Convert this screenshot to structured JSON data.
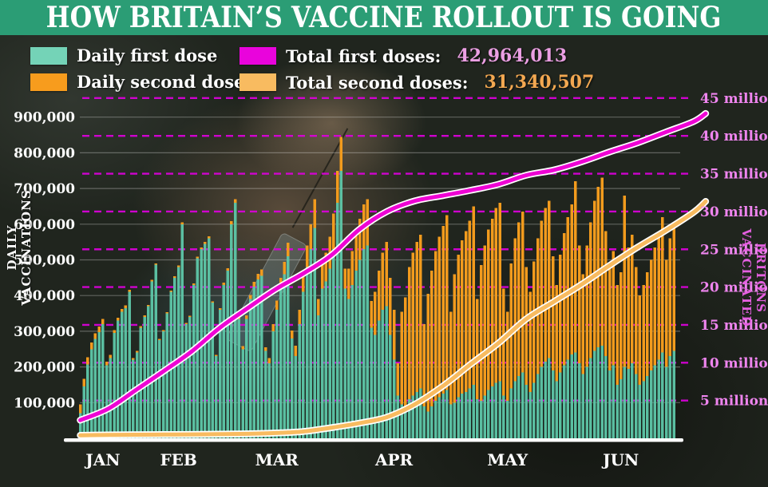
{
  "header": {
    "title": "HOW BRITAIN’S VACCINE ROLLOUT IS GOING"
  },
  "legend": {
    "daily_first": {
      "label": "Daily first dose"
    },
    "daily_second": {
      "label": "Daily second dose"
    },
    "total_first": {
      "label": "Total first doses:",
      "value": "42,964,013"
    },
    "total_second": {
      "label": "Total second doses:",
      "value": "31,340,507"
    }
  },
  "colors": {
    "header_green": "#2b9d75",
    "bar_first": "#5ec7a9",
    "bar_second": "#f29b1d",
    "swatch_first": "#74d3b7",
    "swatch_second": "#f79c1d",
    "swatch_total_first": "#e904dc",
    "swatch_total_second": "#f8bb60",
    "line_first": "#ee04d4",
    "line_second": "#f8bb60",
    "dashed_grid": "#dd00dd",
    "solid_grid": "rgba(245,245,245,0.30)",
    "right_axis_text": "#ef85ef",
    "left_axis_text": "#ffffff",
    "total_first_value": "#eb9fe3",
    "total_second_value": "#f3a851",
    "month_text": "#ffffff",
    "axis_line": "#ffffff"
  },
  "chart_data": {
    "type": "bar",
    "subtype": "stacked daily bars + cumulative lines (dual axis)",
    "title": "HOW BRITAIN’S VACCINE ROLLOUT IS GOING",
    "x_axis": {
      "unit": "day",
      "months": [
        {
          "label": "JAN",
          "day": 6
        },
        {
          "label": "FEB",
          "day": 26
        },
        {
          "label": "MAR",
          "day": 52
        },
        {
          "label": "APR",
          "day": 83
        },
        {
          "label": "MAY",
          "day": 113
        },
        {
          "label": "JUN",
          "day": 143
        }
      ]
    },
    "left_axis": {
      "title": "DAILY VACCINATIONS",
      "ticks": [
        "100,000",
        "200,000",
        "300,000",
        "400,000",
        "500,000",
        "600,000",
        "700,000",
        "800,000",
        "900,000"
      ],
      "tick_step": 100000,
      "range": [
        0,
        950000
      ],
      "grid": "solid"
    },
    "right_axis": {
      "title": "BRITONS VACCINATED",
      "ticks": [
        "5 million",
        "10 million",
        "15 million",
        "20 million",
        "25 million",
        "30 million",
        "35 million",
        "40 million",
        "45 million"
      ],
      "tick_step_millions": 5,
      "range_millions": [
        0,
        47
      ],
      "grid": "dashed"
    },
    "totals": {
      "first_doses": "42,964,013",
      "second_doses": "31,340,507"
    },
    "series": {
      "daily_first_dose_thousands": [
        70,
        145,
        207,
        250,
        278,
        298,
        320,
        205,
        225,
        295,
        330,
        355,
        365,
        410,
        220,
        240,
        310,
        340,
        370,
        440,
        487,
        275,
        300,
        350,
        410,
        450,
        480,
        600,
        320,
        340,
        430,
        505,
        530,
        545,
        560,
        380,
        230,
        360,
        430,
        470,
        600,
        660,
        335,
        250,
        335,
        390,
        425,
        445,
        455,
        245,
        210,
        300,
        360,
        420,
        460,
        510,
        280,
        230,
        320,
        410,
        480,
        530,
        590,
        345,
        420,
        440,
        475,
        530,
        660,
        750,
        420,
        390,
        430,
        470,
        500,
        530,
        540,
        310,
        290,
        330,
        360,
        370,
        290,
        220,
        120,
        95,
        85,
        110,
        120,
        130,
        140,
        90,
        75,
        90,
        105,
        115,
        125,
        135,
        95,
        100,
        115,
        125,
        130,
        140,
        150,
        110,
        105,
        120,
        135,
        145,
        155,
        160,
        120,
        105,
        140,
        160,
        175,
        185,
        150,
        130,
        155,
        180,
        200,
        215,
        225,
        190,
        160,
        185,
        205,
        220,
        235,
        240,
        210,
        180,
        200,
        225,
        245,
        255,
        260,
        230,
        190,
        205,
        150,
        165,
        200,
        195,
        210,
        180,
        150,
        160,
        175,
        190,
        205,
        220,
        240,
        200,
        230,
        245
      ],
      "daily_second_dose_thousands": [
        25,
        22,
        20,
        18,
        16,
        15,
        14,
        10,
        9,
        8,
        8,
        7,
        7,
        6,
        5,
        5,
        4,
        4,
        4,
        4,
        3,
        3,
        3,
        3,
        4,
        4,
        4,
        5,
        3,
        3,
        4,
        4,
        5,
        5,
        6,
        4,
        4,
        5,
        6,
        7,
        8,
        10,
        6,
        8,
        10,
        12,
        14,
        16,
        18,
        10,
        15,
        20,
        26,
        30,
        34,
        38,
        22,
        30,
        40,
        50,
        60,
        70,
        80,
        45,
        70,
        80,
        90,
        100,
        90,
        95,
        55,
        85,
        95,
        105,
        115,
        125,
        130,
        75,
        120,
        140,
        160,
        180,
        160,
        140,
        90,
        260,
        310,
        370,
        400,
        420,
        430,
        230,
        330,
        380,
        420,
        450,
        470,
        490,
        260,
        360,
        400,
        430,
        450,
        470,
        500,
        280,
        380,
        420,
        450,
        470,
        490,
        500,
        300,
        250,
        350,
        400,
        430,
        450,
        330,
        280,
        340,
        380,
        410,
        430,
        440,
        320,
        270,
        330,
        370,
        400,
        420,
        480,
        330,
        280,
        340,
        380,
        420,
        450,
        470,
        350,
        300,
        320,
        280,
        300,
        480,
        340,
        360,
        300,
        250,
        270,
        290,
        310,
        330,
        350,
        380,
        300,
        330,
        360
      ],
      "cumulative_first_doses_millions": {
        "days": [
          0,
          7,
          14,
          21,
          28,
          35,
          42,
          49,
          56,
          63,
          70,
          77,
          84,
          91,
          98,
          105,
          112,
          119,
          126,
          133,
          140,
          147,
          154,
          157
        ],
        "values": [
          2.4,
          3.9,
          6.4,
          8.9,
          11.5,
          14.6,
          17.2,
          19.7,
          21.8,
          24.2,
          27.6,
          30.0,
          31.4,
          32.1,
          32.8,
          33.6,
          34.8,
          35.5,
          36.6,
          37.9,
          39.1,
          40.5,
          41.9,
          42.96
        ]
      },
      "cumulative_second_doses_millions": {
        "days": [
          0,
          7,
          14,
          21,
          28,
          35,
          42,
          49,
          56,
          63,
          70,
          77,
          84,
          91,
          98,
          105,
          112,
          119,
          126,
          133,
          140,
          147,
          154,
          157
        ],
        "values": [
          0.4,
          0.45,
          0.48,
          0.5,
          0.52,
          0.55,
          0.6,
          0.7,
          0.9,
          1.4,
          2.0,
          2.8,
          4.5,
          6.9,
          9.8,
          12.6,
          15.8,
          18.1,
          20.4,
          22.9,
          25.3,
          27.5,
          29.9,
          31.34
        ]
      }
    },
    "legend_position": "top-left, two columns"
  }
}
